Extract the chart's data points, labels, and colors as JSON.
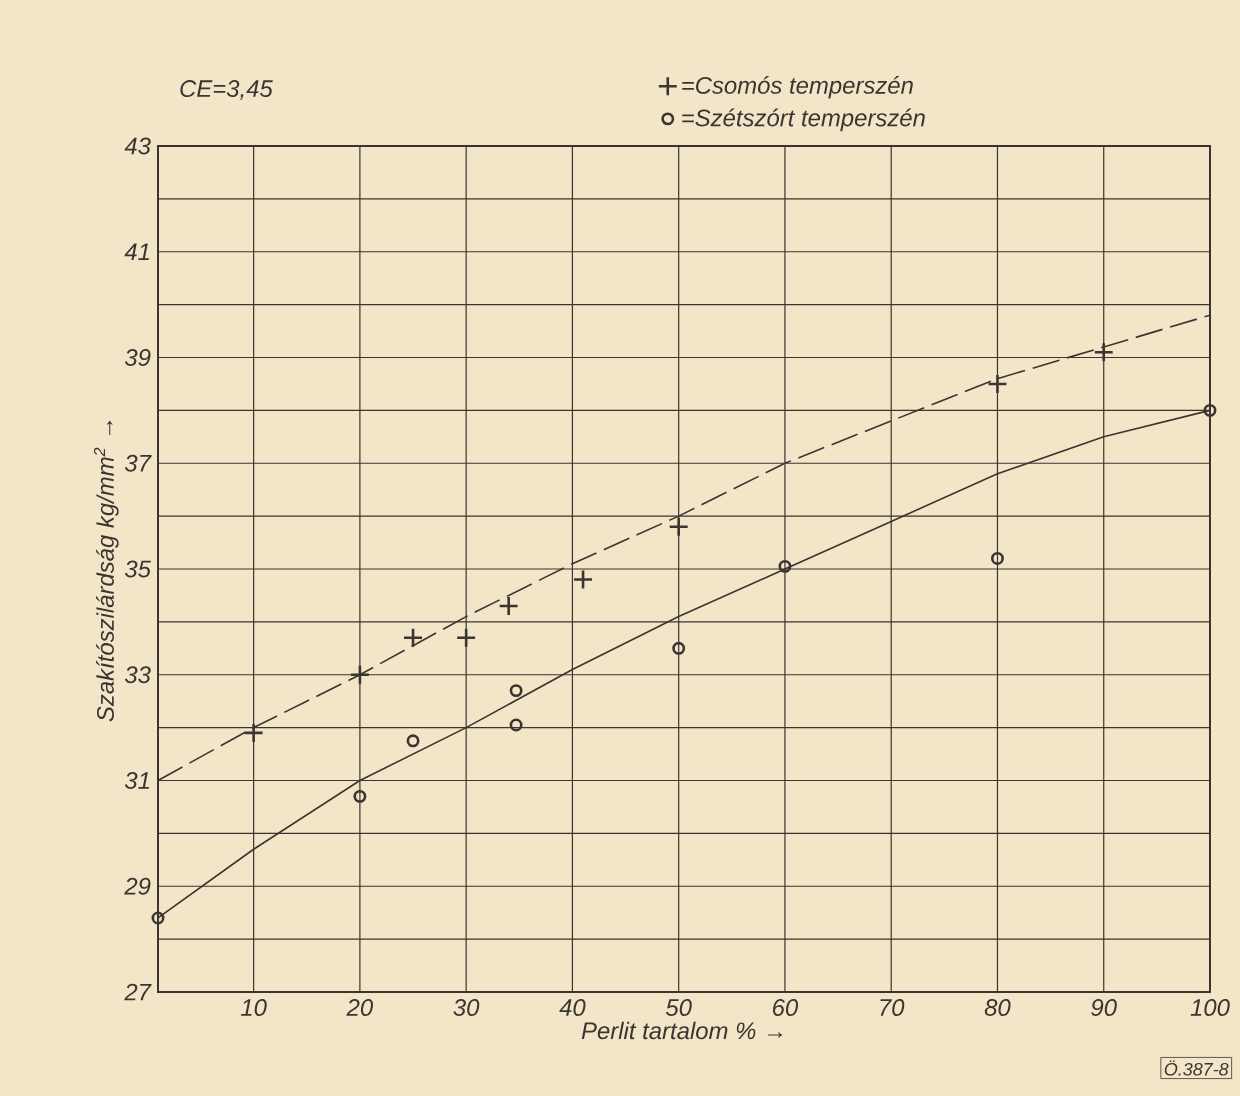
{
  "chart_data": {
    "type": "scatter",
    "xlabel": "Perlit tartalom %  →",
    "ylabel": "Szakítószilárdság kg/mm$^{2}$  →",
    "annotations": [
      "CE=3,45",
      "Ö.387-8"
    ],
    "xlim": [
      1,
      100
    ],
    "xticks": [
      10,
      20,
      30,
      40,
      50,
      60,
      70,
      80,
      90,
      100
    ],
    "ylim": [
      27,
      43
    ],
    "yticks": [
      27,
      {
        "value": 28,
        "label": null
      },
      29,
      {
        "value": 30,
        "label": null
      },
      31,
      {
        "value": 32,
        "label": null
      },
      33,
      {
        "value": 34,
        "label": null
      },
      35,
      {
        "value": 36,
        "label": null
      },
      37,
      {
        "value": 38,
        "label": null
      },
      39,
      {
        "value": 40,
        "label": null
      },
      41,
      {
        "value": 42,
        "label": null
      },
      43
    ],
    "grid": true,
    "legend": "top right",
    "series": [
      {
        "name": "=Csomós temperszén",
        "marker": "cross",
        "color": "#3a3530",
        "x": [
          10,
          20,
          25,
          30,
          34,
          41,
          50,
          80,
          90
        ],
        "values": [
          31.9,
          33.0,
          33.7,
          33.7,
          34.3,
          34.8,
          35.8,
          38.5,
          39.1
        ]
      },
      {
        "name": "=Szétszórt temperszén",
        "marker": "circle",
        "color": "#3a3530",
        "x": [
          1,
          20,
          25,
          34.7,
          34.7,
          50,
          60,
          80,
          100
        ],
        "values": [
          28.4,
          30.7,
          31.75,
          32.7,
          32.05,
          33.5,
          35.05,
          35.2,
          38.0
        ]
      },
      {
        "type": "line",
        "marker": "none",
        "line_style": "dashed",
        "color": "#3a3530",
        "x": [
          1,
          10,
          20,
          30,
          40,
          50,
          60,
          70,
          80,
          90,
          100
        ],
        "values": [
          31.0,
          32.0,
          33.0,
          34.1,
          35.1,
          36.0,
          37.0,
          37.8,
          38.6,
          39.2,
          39.8
        ]
      },
      {
        "type": "line",
        "marker": "none",
        "line_style": "solid",
        "color": "#3a3530",
        "x": [
          1,
          10,
          20,
          30,
          40,
          50,
          60,
          70,
          80,
          90,
          100
        ],
        "values": [
          28.4,
          29.7,
          31.0,
          32.0,
          33.1,
          34.1,
          35.0,
          35.9,
          36.8,
          37.5,
          38.0
        ]
      }
    ]
  }
}
